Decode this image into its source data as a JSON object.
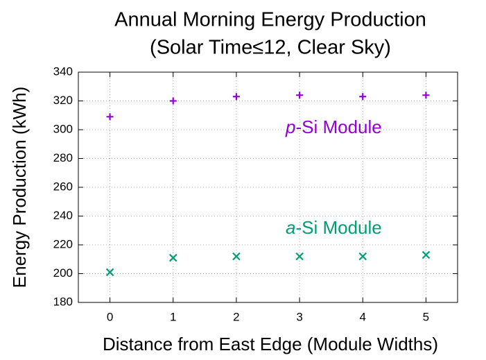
{
  "chart_data": {
    "type": "scatter",
    "title": "Annual Morning Energy Production",
    "subtitle": "(Solar Time≤12, Clear Sky)",
    "xlabel": "Distance from East Edge (Module Widths)",
    "ylabel": "Energy Production (kWh)",
    "x": [
      0,
      1,
      2,
      3,
      4,
      5
    ],
    "series": [
      {
        "name": "p-Si Module",
        "color": "#9400d3",
        "marker": "plus",
        "values": [
          309,
          320,
          323,
          324,
          323,
          324
        ]
      },
      {
        "name": "a-Si Module",
        "color": "#009e73",
        "marker": "cross",
        "values": [
          201,
          211,
          212,
          212,
          212,
          213
        ]
      }
    ],
    "xlim": [
      -0.5,
      5.5
    ],
    "xticks": [
      0,
      1,
      2,
      3,
      4,
      5
    ],
    "ylim": [
      180,
      340
    ],
    "yticks": [
      180,
      200,
      220,
      240,
      260,
      280,
      300,
      320,
      340
    ],
    "grid": true
  }
}
